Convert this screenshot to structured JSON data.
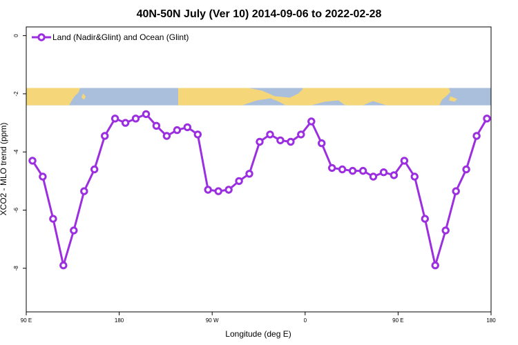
{
  "chart_data": {
    "type": "line",
    "title": "40N-50N July (Ver 10)   2014-09-06 to 2022-02-28",
    "xlabel": "Longitude (deg E)",
    "ylabel": "XCO2 - MLO trend (ppm)",
    "xlim": [
      90,
      540
    ],
    "ylim": [
      -9.5,
      0.3
    ],
    "x_ticks": [
      {
        "value": 90,
        "label": "90 E"
      },
      {
        "value": 180,
        "label": "180"
      },
      {
        "value": 270,
        "label": "90 W"
      },
      {
        "value": 360,
        "label": "0"
      },
      {
        "value": 450,
        "label": "90 E"
      },
      {
        "value": 540,
        "label": "180"
      }
    ],
    "y_ticks": [
      {
        "value": 0,
        "label": "0"
      },
      {
        "value": -2,
        "label": "-2"
      },
      {
        "value": -4,
        "label": "-4"
      },
      {
        "value": -6,
        "label": "-6"
      },
      {
        "value": -8,
        "label": "-8"
      }
    ],
    "legend": {
      "position": "top-left"
    },
    "map_band": {
      "y_top": -1.8,
      "y_bottom": -2.4,
      "land_color": "#f5d77a",
      "ocean_color": "#a9bfdc"
    },
    "series": [
      {
        "name": "Land (Nadir&Glint) and Ocean (Glint)",
        "color": "#9b2fe0",
        "x": [
          96,
          106,
          116,
          126,
          136,
          146,
          156,
          166,
          176,
          186,
          196,
          206,
          216,
          226,
          236,
          246,
          256,
          266,
          276,
          286,
          296,
          306,
          316,
          326,
          336,
          346,
          356,
          366,
          376,
          386,
          396,
          406,
          416,
          426,
          436,
          446,
          456,
          466,
          476,
          486,
          496,
          506,
          516,
          526,
          536
        ],
        "values": [
          -4.3,
          -4.85,
          -6.3,
          -7.9,
          -6.7,
          -5.35,
          -4.6,
          -3.45,
          -2.85,
          -3.0,
          -2.85,
          -2.7,
          -3.1,
          -3.45,
          -3.25,
          -3.15,
          -3.4,
          -5.3,
          -5.35,
          -5.3,
          -5.0,
          -4.75,
          -3.65,
          -3.4,
          -3.6,
          -3.65,
          -3.4,
          -2.95,
          -3.7,
          -4.55,
          -4.6,
          -4.65,
          -4.65,
          -4.85,
          -4.7,
          -4.8,
          -4.3,
          -4.85,
          -6.3,
          -7.9,
          -6.7,
          -5.35,
          -4.6,
          -3.45,
          -2.85
        ]
      }
    ]
  }
}
